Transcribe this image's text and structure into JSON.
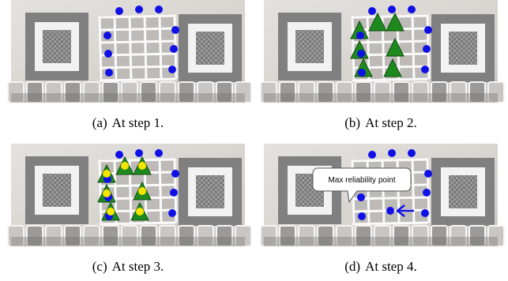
{
  "figures": [
    {
      "label": "(a)",
      "caption": "At step 1."
    },
    {
      "label": "(b)",
      "caption": "At step 2."
    },
    {
      "label": "(c)",
      "caption": "At step 3."
    },
    {
      "label": "(d)",
      "caption": "At step 4."
    }
  ],
  "callout": "Max reliability point"
}
